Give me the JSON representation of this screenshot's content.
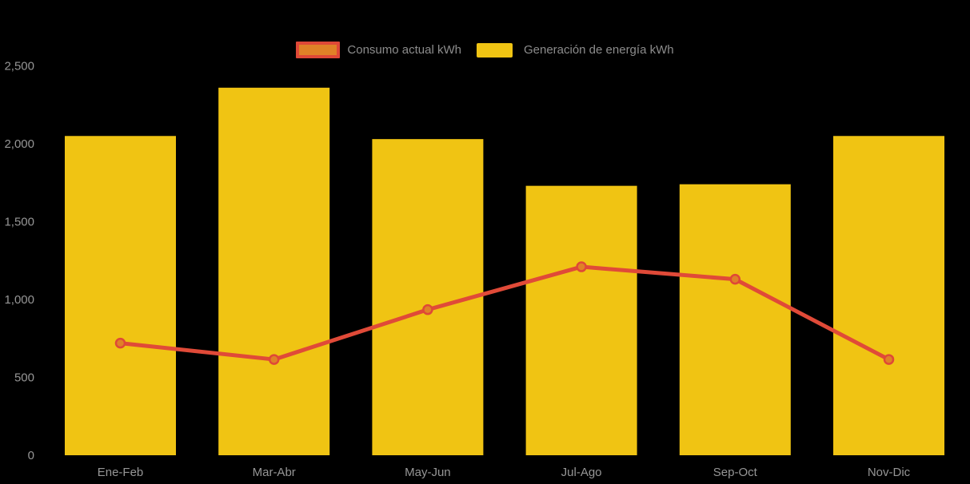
{
  "colors": {
    "background": "#000000",
    "bar": "#F0C413",
    "line": "#E04A38",
    "marker_fill": "#E08127",
    "marker_stroke": "#DF4837",
    "axis_text": "#969696",
    "legend_text": "#8C8C8C"
  },
  "legend": {
    "items": [
      {
        "label": "Consumo actual kWh",
        "swatch_type": "line"
      },
      {
        "label": "Generación de energía kWh",
        "swatch_type": "bar"
      }
    ]
  },
  "chart_data": {
    "type": "bar",
    "subtype": "bar-and-line-combo",
    "categories": [
      "Ene-Feb",
      "Mar-Abr",
      "May-Jun",
      "Jul-Ago",
      "Sep-Oct",
      "Nov-Dic"
    ],
    "series": [
      {
        "name": "Consumo actual kWh",
        "type": "line",
        "values": [
          720,
          615,
          935,
          1210,
          1130,
          615
        ]
      },
      {
        "name": "Generación de energía kWh",
        "type": "bar",
        "values": [
          2050,
          2360,
          2030,
          1730,
          1740,
          2050
        ]
      }
    ],
    "title": "",
    "xlabel": "",
    "ylabel": "",
    "ylim": [
      0,
      2500
    ],
    "yticks": [
      0,
      500,
      1000,
      1500,
      2000,
      2500
    ],
    "ytick_labels": [
      "0",
      "500",
      "1,000",
      "1,500",
      "2,000",
      "2,500"
    ],
    "grid": false,
    "legend_position": "top-center"
  }
}
